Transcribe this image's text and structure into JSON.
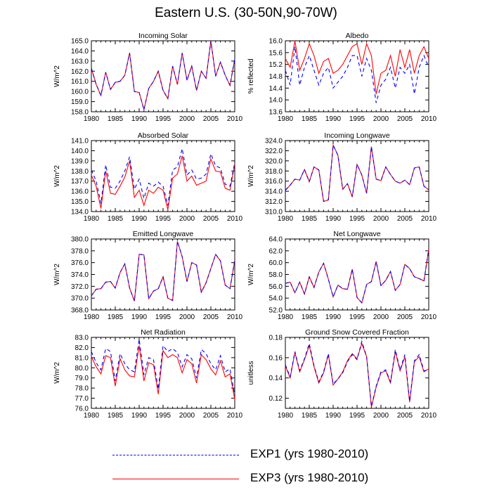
{
  "title": "Eastern U.S. (30-50N,90-70W)",
  "colors": {
    "exp1": "#0000ff",
    "exp3": "#ff0000",
    "axis": "#000000"
  },
  "legend": [
    {
      "label": "EXP1 (yrs 1980-2010)",
      "color": "#0000ff",
      "style": "dashed"
    },
    {
      "label": "EXP3 (yrs 1980-2010)",
      "color": "#ff0000",
      "style": "solid"
    }
  ],
  "chart_data": [
    {
      "type": "line",
      "title": "Incoming Solar",
      "ylabel": "W/m^2",
      "xlim": [
        1980,
        2010
      ],
      "ylim": [
        158.0,
        165.0
      ],
      "xticks": [
        "1980",
        "1985",
        "1990",
        "1995",
        "2000",
        "2005",
        "2010"
      ],
      "yticks": [
        "158.0",
        "159.0",
        "160.0",
        "161.0",
        "162.0",
        "163.0",
        "164.0",
        "165.0"
      ],
      "years": [
        1980,
        1981,
        1982,
        1983,
        1984,
        1985,
        1986,
        1987,
        1988,
        1989,
        1990,
        1991,
        1992,
        1993,
        1994,
        1995,
        1996,
        1997,
        1998,
        1999,
        2000,
        2001,
        2002,
        2003,
        2004,
        2005,
        2006,
        2007,
        2008,
        2009,
        2010
      ],
      "series": [
        {
          "name": "EXP1 (yrs 1980-2010)",
          "values": [
            162.3,
            160.7,
            159.6,
            161.9,
            160.2,
            160.9,
            161.0,
            161.6,
            163.8,
            160.0,
            159.9,
            158.2,
            160.3,
            161.0,
            162.0,
            160.1,
            159.3,
            162.5,
            160.7,
            163.8,
            161.1,
            162.5,
            160.1,
            162.0,
            161.3,
            165.0,
            161.5,
            162.9,
            161.6,
            160.6,
            163.2
          ]
        },
        {
          "name": "EXP3 (yrs 1980-2010)",
          "values": [
            162.3,
            160.7,
            159.6,
            161.9,
            160.2,
            160.9,
            161.0,
            161.6,
            163.8,
            160.0,
            159.9,
            158.2,
            160.3,
            161.0,
            162.0,
            160.1,
            159.3,
            162.5,
            160.7,
            163.8,
            161.1,
            162.5,
            160.1,
            162.0,
            161.3,
            165.0,
            161.5,
            162.9,
            161.6,
            160.6,
            163.2
          ]
        }
      ]
    },
    {
      "type": "line",
      "title": "Albedo",
      "ylabel": "% reflected",
      "xlim": [
        1980,
        2010
      ],
      "ylim": [
        13.6,
        16.0
      ],
      "xticks": [
        "1980",
        "1985",
        "1990",
        "1995",
        "2000",
        "2005",
        "2010"
      ],
      "yticks": [
        "13.6",
        "14.0",
        "14.4",
        "14.8",
        "15.2",
        "15.6",
        "16.0"
      ],
      "years": [
        1980,
        1981,
        1982,
        1983,
        1984,
        1985,
        1986,
        1987,
        1988,
        1989,
        1990,
        1991,
        1992,
        1993,
        1994,
        1995,
        1996,
        1997,
        1998,
        1999,
        2000,
        2001,
        2002,
        2003,
        2004,
        2005,
        2006,
        2007,
        2008,
        2009,
        2010
      ],
      "series": [
        {
          "name": "EXP1 (yrs 1980-2010)",
          "values": [
            15.0,
            14.5,
            15.8,
            14.5,
            15.1,
            15.5,
            15.0,
            14.5,
            14.9,
            15.1,
            14.4,
            14.6,
            14.8,
            15.1,
            15.5,
            15.5,
            14.8,
            15.4,
            15.0,
            13.9,
            14.5,
            14.7,
            15.1,
            14.4,
            15.1,
            14.9,
            15.2,
            14.2,
            15.1,
            15.5,
            15.1
          ]
        },
        {
          "name": "EXP3 (yrs 1980-2010)",
          "values": [
            15.4,
            15.1,
            16.0,
            15.0,
            15.4,
            15.9,
            15.5,
            14.9,
            15.3,
            15.4,
            14.9,
            15.0,
            15.2,
            15.5,
            15.8,
            15.9,
            15.2,
            15.9,
            15.5,
            14.2,
            14.9,
            15.0,
            15.5,
            14.8,
            15.7,
            15.1,
            15.7,
            14.9,
            15.5,
            15.8,
            15.4
          ]
        }
      ]
    },
    {
      "type": "line",
      "title": "Absorbed Solar",
      "ylabel": "W/m^2",
      "xlim": [
        1980,
        2010
      ],
      "ylim": [
        134.0,
        141.0
      ],
      "xticks": [
        "1980",
        "1985",
        "1990",
        "1995",
        "2000",
        "2005",
        "2010"
      ],
      "yticks": [
        "134.0",
        "135.0",
        "136.0",
        "137.0",
        "138.0",
        "139.0",
        "140.0",
        "141.0"
      ],
      "years": [
        1980,
        1981,
        1982,
        1983,
        1984,
        1985,
        1986,
        1987,
        1988,
        1989,
        1990,
        1991,
        1992,
        1993,
        1994,
        1995,
        1996,
        1997,
        1998,
        1999,
        2000,
        2001,
        2002,
        2003,
        2004,
        2005,
        2006,
        2007,
        2008,
        2009,
        2010
      ],
      "series": [
        {
          "name": "EXP1 (yrs 1980-2010)",
          "values": [
            138.1,
            137.0,
            134.8,
            138.6,
            136.4,
            136.3,
            137.0,
            138.0,
            139.4,
            136.2,
            137.2,
            135.3,
            136.8,
            136.5,
            136.9,
            136.5,
            134.6,
            138.1,
            138.4,
            140.2,
            137.6,
            138.1,
            137.2,
            137.3,
            137.7,
            139.7,
            138.5,
            138.3,
            136.7,
            136.5,
            138.8
          ]
        },
        {
          "name": "EXP3 (yrs 1980-2010)",
          "values": [
            137.6,
            136.5,
            134.3,
            138.0,
            135.8,
            135.7,
            136.5,
            137.4,
            139.0,
            135.4,
            136.1,
            134.6,
            136.1,
            135.8,
            136.4,
            136.1,
            134.2,
            137.3,
            137.7,
            139.5,
            137.0,
            137.5,
            136.6,
            136.8,
            137.0,
            139.2,
            138.0,
            137.9,
            136.3,
            136.1,
            138.7
          ]
        }
      ]
    },
    {
      "type": "line",
      "title": "Incoming Longwave",
      "ylabel": "W/m^2",
      "xlim": [
        1980,
        2010
      ],
      "ylim": [
        310.0,
        324.0
      ],
      "xticks": [
        "1980",
        "1985",
        "1990",
        "1995",
        "2000",
        "2005",
        "2010"
      ],
      "yticks": [
        "310.0",
        "312.0",
        "314.0",
        "316.0",
        "318.0",
        "320.0",
        "322.0",
        "324.0"
      ],
      "years": [
        1980,
        1981,
        1982,
        1983,
        1984,
        1985,
        1986,
        1987,
        1988,
        1989,
        1990,
        1991,
        1992,
        1993,
        1994,
        1995,
        1996,
        1997,
        1998,
        1999,
        2000,
        2001,
        2002,
        2003,
        2004,
        2005,
        2006,
        2007,
        2008,
        2009,
        2010
      ],
      "series": [
        {
          "name": "EXP1 (yrs 1980-2010)",
          "values": [
            314.2,
            315.2,
            316.4,
            316.2,
            318.3,
            315.9,
            318.8,
            318.2,
            312.0,
            312.3,
            323.1,
            321.1,
            314.4,
            315.5,
            312.9,
            319.3,
            317.2,
            313.6,
            322.8,
            316.4,
            316.1,
            318.8,
            317.3,
            316.0,
            315.6,
            316.2,
            315.3,
            318.6,
            318.8,
            315.0,
            314.3
          ]
        },
        {
          "name": "EXP3 (yrs 1980-2010)",
          "values": [
            314.2,
            315.2,
            316.4,
            316.2,
            318.3,
            315.9,
            318.8,
            318.2,
            312.0,
            312.3,
            323.1,
            321.1,
            314.4,
            315.5,
            312.9,
            319.3,
            317.2,
            313.6,
            322.8,
            316.4,
            316.1,
            318.8,
            317.3,
            316.0,
            315.6,
            316.2,
            315.3,
            318.6,
            318.8,
            315.0,
            314.3
          ]
        }
      ]
    },
    {
      "type": "line",
      "title": "Emitted Longwave",
      "ylabel": "W/m^2",
      "xlim": [
        1980,
        2010
      ],
      "ylim": [
        368.0,
        380.0
      ],
      "xticks": [
        "1980",
        "1985",
        "1990",
        "1995",
        "2000",
        "2005",
        "2010"
      ],
      "yticks": [
        "368.0",
        "370.0",
        "372.0",
        "374.0",
        "376.0",
        "378.0",
        "380.0"
      ],
      "years": [
        1980,
        1981,
        1982,
        1983,
        1984,
        1985,
        1986,
        1987,
        1988,
        1989,
        1990,
        1991,
        1992,
        1993,
        1994,
        1995,
        1996,
        1997,
        1998,
        1999,
        2000,
        2001,
        2002,
        2003,
        2004,
        2005,
        2006,
        2007,
        2008,
        2009,
        2010
      ],
      "series": [
        {
          "name": "EXP1 (yrs 1980-2010)",
          "values": [
            370.4,
            371.5,
            371.6,
            372.7,
            372.8,
            371.7,
            374.3,
            375.8,
            371.7,
            369.5,
            377.4,
            377.3,
            369.9,
            371.2,
            371.6,
            373.6,
            370.0,
            369.6,
            379.6,
            377.0,
            372.8,
            376.0,
            375.6,
            371.0,
            372.6,
            375.0,
            377.4,
            376.3,
            372.2,
            371.6,
            376.4
          ]
        },
        {
          "name": "EXP3 (yrs 1980-2010)",
          "values": [
            370.4,
            371.5,
            371.6,
            372.7,
            372.8,
            371.7,
            374.3,
            375.8,
            371.7,
            369.5,
            377.4,
            377.3,
            369.9,
            371.2,
            371.6,
            373.6,
            370.0,
            369.6,
            379.6,
            377.0,
            372.8,
            376.0,
            375.6,
            371.0,
            372.6,
            375.0,
            377.4,
            376.3,
            372.2,
            371.6,
            376.4
          ]
        }
      ]
    },
    {
      "type": "line",
      "title": "Net Longwave",
      "ylabel": "W/m^2",
      "xlim": [
        1980,
        2010
      ],
      "ylim": [
        52.0,
        64.0
      ],
      "xticks": [
        "1980",
        "1985",
        "1990",
        "1995",
        "2000",
        "2005",
        "2010"
      ],
      "yticks": [
        "52.0",
        "54.0",
        "56.0",
        "58.0",
        "60.0",
        "62.0",
        "64.0"
      ],
      "years": [
        1980,
        1981,
        1982,
        1983,
        1984,
        1985,
        1986,
        1987,
        1988,
        1989,
        1990,
        1991,
        1992,
        1993,
        1994,
        1995,
        1996,
        1997,
        1998,
        1999,
        2000,
        2001,
        2002,
        2003,
        2004,
        2005,
        2006,
        2007,
        2008,
        2009,
        2010
      ],
      "series": [
        {
          "name": "EXP1 (yrs 1980-2010)",
          "values": [
            56.5,
            56.7,
            54.9,
            56.7,
            54.7,
            57.6,
            55.8,
            58.4,
            59.9,
            57.2,
            54.2,
            56.2,
            55.6,
            55.5,
            58.9,
            54.1,
            53.2,
            56.3,
            56.8,
            60.2,
            56.1,
            57.0,
            58.5,
            55.3,
            56.3,
            59.7,
            59.0,
            57.6,
            57.3,
            56.9,
            62.3
          ]
        },
        {
          "name": "EXP3 (yrs 1980-2010)",
          "values": [
            56.5,
            56.7,
            54.9,
            56.7,
            54.7,
            57.6,
            55.8,
            58.4,
            59.9,
            57.2,
            54.2,
            56.2,
            55.6,
            55.5,
            58.9,
            54.1,
            53.2,
            56.3,
            56.8,
            60.2,
            56.1,
            57.0,
            58.5,
            55.3,
            56.3,
            59.7,
            59.0,
            57.6,
            57.3,
            56.9,
            62.3
          ]
        }
      ]
    },
    {
      "type": "line",
      "title": "Net Radiation",
      "ylabel": "W/m^2",
      "xlim": [
        1980,
        2010
      ],
      "ylim": [
        76.0,
        83.0
      ],
      "xticks": [
        "1980",
        "1985",
        "1990",
        "1995",
        "2000",
        "2005",
        "2010"
      ],
      "yticks": [
        "76.0",
        "77.0",
        "78.0",
        "79.0",
        "80.0",
        "81.0",
        "82.0",
        "83.0"
      ],
      "years": [
        1980,
        1981,
        1982,
        1983,
        1984,
        1985,
        1986,
        1987,
        1988,
        1989,
        1990,
        1991,
        1992,
        1993,
        1994,
        1995,
        1996,
        1997,
        1998,
        1999,
        2000,
        2001,
        2002,
        2003,
        2004,
        2005,
        2006,
        2007,
        2008,
        2009,
        2010
      ],
      "series": [
        {
          "name": "EXP1 (yrs 1980-2010)",
          "values": [
            81.6,
            80.5,
            79.8,
            81.9,
            81.6,
            78.7,
            81.4,
            80.4,
            79.8,
            79.6,
            82.8,
            79.3,
            81.0,
            80.8,
            77.9,
            82.2,
            81.6,
            81.9,
            81.5,
            80.1,
            81.3,
            80.9,
            79.0,
            81.8,
            81.4,
            80.4,
            79.8,
            81.2,
            79.6,
            79.9,
            77.3
          ]
        },
        {
          "name": "EXP3 (yrs 1980-2010)",
          "values": [
            81.1,
            80.1,
            79.4,
            81.2,
            81.0,
            78.2,
            80.9,
            79.8,
            79.2,
            79.1,
            82.2,
            78.7,
            80.5,
            80.3,
            77.4,
            81.7,
            81.0,
            81.3,
            81.0,
            79.5,
            80.8,
            80.4,
            78.5,
            81.3,
            80.8,
            79.9,
            79.3,
            80.7,
            79.1,
            79.4,
            76.9
          ]
        }
      ]
    },
    {
      "type": "line",
      "title": "Ground Snow Covered Fraction",
      "ylabel": "unitless",
      "xlim": [
        1980,
        2010
      ],
      "ylim": [
        0.11,
        0.18
      ],
      "xticks": [
        "1980",
        "1985",
        "1990",
        "1995",
        "2000",
        "2005",
        "2010"
      ],
      "yticks": [
        "0.12",
        "0.14",
        "0.16",
        "0.18"
      ],
      "years": [
        1980,
        1981,
        1982,
        1983,
        1984,
        1985,
        1986,
        1987,
        1988,
        1989,
        1990,
        1991,
        1992,
        1993,
        1994,
        1995,
        1996,
        1997,
        1998,
        1999,
        2000,
        2001,
        2002,
        2003,
        2004,
        2005,
        2006,
        2007,
        2008,
        2009,
        2010
      ],
      "series": [
        {
          "name": "EXP1 (yrs 1980-2010)",
          "values": [
            0.153,
            0.141,
            0.166,
            0.147,
            0.159,
            0.174,
            0.152,
            0.136,
            0.146,
            0.164,
            0.134,
            0.139,
            0.145,
            0.156,
            0.163,
            0.158,
            0.176,
            0.161,
            0.112,
            0.132,
            0.146,
            0.148,
            0.136,
            0.168,
            0.148,
            0.163,
            0.117,
            0.157,
            0.163,
            0.147,
            0.148
          ]
        },
        {
          "name": "EXP3 (yrs 1980-2010)",
          "values": [
            0.152,
            0.14,
            0.165,
            0.146,
            0.158,
            0.172,
            0.151,
            0.135,
            0.145,
            0.163,
            0.133,
            0.139,
            0.146,
            0.157,
            0.164,
            0.159,
            0.174,
            0.161,
            0.111,
            0.131,
            0.145,
            0.147,
            0.135,
            0.166,
            0.147,
            0.161,
            0.116,
            0.156,
            0.161,
            0.146,
            0.149
          ]
        }
      ]
    }
  ]
}
